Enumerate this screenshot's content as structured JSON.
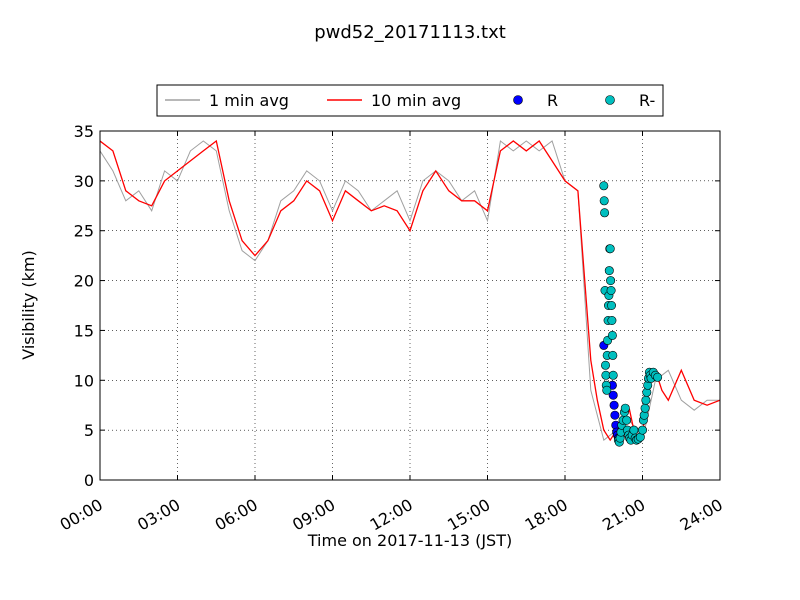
{
  "chart_data": {
    "type": "line",
    "title": "pwd52_20171113.txt",
    "xlabel": "Time on 2017-11-13 (JST)",
    "ylabel": "Visibility (km)",
    "xlim": [
      "00:00",
      "24:00"
    ],
    "ylim": [
      0,
      35
    ],
    "grid": true,
    "legend_position": "top",
    "x_ticks": [
      "00:00",
      "03:00",
      "06:00",
      "09:00",
      "12:00",
      "15:00",
      "18:00",
      "21:00",
      "24:00"
    ],
    "y_ticks": [
      0,
      5,
      10,
      15,
      20,
      25,
      30,
      35
    ],
    "series": [
      {
        "name": "1 min avg",
        "kind": "line",
        "color": "#a0a0a0",
        "x": [
          "00:00",
          "00:30",
          "01:00",
          "01:30",
          "02:00",
          "02:30",
          "03:00",
          "03:30",
          "04:00",
          "04:30",
          "05:00",
          "05:30",
          "06:00",
          "06:30",
          "07:00",
          "07:30",
          "08:00",
          "08:30",
          "09:00",
          "09:30",
          "10:00",
          "10:30",
          "11:00",
          "11:30",
          "12:00",
          "12:30",
          "13:00",
          "13:30",
          "14:00",
          "14:30",
          "15:00",
          "15:30",
          "16:00",
          "16:30",
          "17:00",
          "17:30",
          "18:00",
          "18:30",
          "19:00",
          "19:30",
          "20:00",
          "20:30",
          "21:00",
          "21:30",
          "22:00",
          "22:30",
          "23:00",
          "23:30",
          "24:00"
        ],
        "y": [
          33,
          31,
          28,
          29,
          27,
          31,
          30,
          33,
          34,
          33,
          27,
          23,
          22,
          24,
          28,
          29,
          31,
          30,
          27,
          30,
          29,
          27,
          28,
          29,
          26,
          30,
          31,
          30,
          28,
          29,
          26,
          34,
          33,
          34,
          33,
          34,
          30,
          29,
          9,
          4,
          5,
          6,
          4,
          10,
          11,
          8,
          7,
          8,
          8
        ]
      },
      {
        "name": "10 min avg",
        "kind": "line",
        "color": "#ff0000",
        "x": [
          "00:00",
          "00:30",
          "01:00",
          "01:30",
          "02:00",
          "02:30",
          "03:00",
          "03:30",
          "04:00",
          "04:30",
          "05:00",
          "05:15",
          "05:30",
          "06:00",
          "06:30",
          "07:00",
          "07:30",
          "08:00",
          "08:30",
          "09:00",
          "09:30",
          "10:00",
          "10:30",
          "11:00",
          "11:30",
          "12:00",
          "12:30",
          "13:00",
          "13:30",
          "14:00",
          "14:30",
          "15:00",
          "15:30",
          "16:00",
          "16:30",
          "17:00",
          "17:30",
          "18:00",
          "18:30",
          "19:00",
          "19:15",
          "19:30",
          "19:45",
          "20:00",
          "20:15",
          "20:30",
          "20:45",
          "21:00",
          "21:15",
          "21:30",
          "21:45",
          "22:00",
          "22:30",
          "23:00",
          "23:30",
          "24:00"
        ],
        "y": [
          34,
          33,
          29,
          28,
          27.5,
          30,
          31,
          32,
          33,
          34,
          28,
          26,
          24,
          22.5,
          24,
          27,
          28,
          30,
          29,
          26,
          29,
          28,
          27,
          27.5,
          27,
          25,
          29,
          31,
          29,
          28,
          28,
          27,
          33,
          34,
          33,
          34,
          32,
          30,
          29,
          12,
          8,
          5,
          4,
          5,
          6,
          7,
          4,
          4.5,
          10,
          11,
          9,
          8,
          11,
          8,
          7.5,
          8
        ]
      },
      {
        "name": "R",
        "kind": "scatter",
        "color": "#0000ff",
        "x": [
          "19:30",
          "19:50",
          "19:52",
          "19:54",
          "19:56",
          "19:58",
          "20:00",
          "20:02",
          "20:04"
        ],
        "y": [
          13.5,
          9.5,
          8.5,
          7.5,
          6.5,
          5.5,
          4.8,
          4.5,
          4.2
        ]
      },
      {
        "name": "R-",
        "kind": "scatter",
        "color": "#00bfbf",
        "x": [
          "19:30",
          "19:31",
          "19:32",
          "19:33",
          "19:34",
          "19:35",
          "19:36",
          "19:37",
          "19:38",
          "19:39",
          "19:40",
          "19:41",
          "19:42",
          "19:43",
          "19:44",
          "19:45",
          "19:46",
          "19:47",
          "19:48",
          "19:49",
          "19:50",
          "19:51",
          "19:52",
          "20:04",
          "20:06",
          "20:08",
          "20:10",
          "20:12",
          "20:15",
          "20:18",
          "20:20",
          "20:23",
          "20:25",
          "20:28",
          "20:30",
          "20:33",
          "20:36",
          "20:40",
          "20:43",
          "20:46",
          "20:50",
          "20:55",
          "21:00",
          "21:02",
          "21:04",
          "21:06",
          "21:08",
          "21:10",
          "21:12",
          "21:14",
          "21:16",
          "21:18",
          "21:20",
          "21:25",
          "21:30",
          "21:35"
        ],
        "y": [
          29.5,
          28,
          26.8,
          19,
          11.5,
          10.5,
          9.5,
          9,
          12.5,
          14,
          16,
          17.5,
          18.5,
          21,
          23.2,
          23.2,
          20,
          19,
          17.5,
          16,
          14.5,
          12.5,
          10.5,
          4,
          3.8,
          4.2,
          4.8,
          5.5,
          6,
          6.8,
          7.2,
          6,
          5,
          4.5,
          4.2,
          4,
          4.5,
          5,
          4.2,
          4,
          4.1,
          4.3,
          5,
          6,
          6.5,
          7.2,
          8.0,
          8.8,
          9.5,
          10.2,
          10.8,
          10.5,
          10.2,
          10.8,
          10.5,
          10.3
        ]
      }
    ]
  }
}
